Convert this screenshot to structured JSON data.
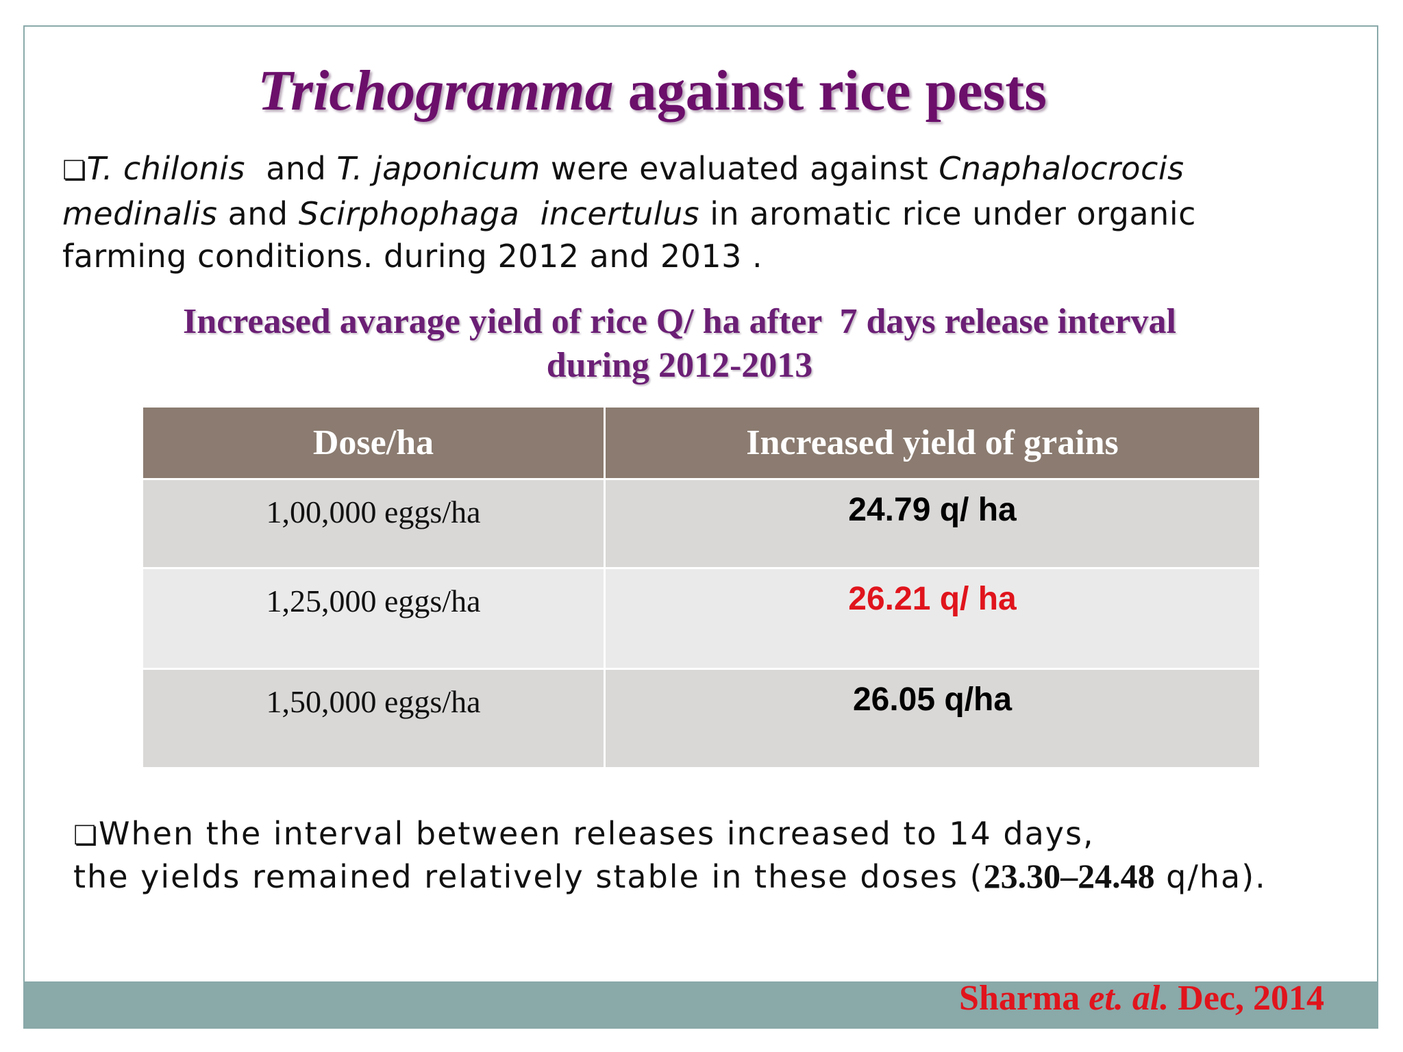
{
  "title": [
    "Trichogramma",
    " against rice pests"
  ],
  "intro": [
    "T. chilonis",
    "  and ",
    "T. japonicum",
    " were evaluated against ",
    "Cnaphalocrocis",
    "medinalis",
    " and ",
    "Scirphophaga  incertulus",
    " in aromatic rice under organic",
    "farming conditions. during 2012 and 2013 ."
  ],
  "subtitle": [
    "Increased avarage yield of rice Q/ ha after  7 days release interval",
    "during 2012-2013"
  ],
  "table": {
    "header": [
      "Dose/ha",
      "Increased yield  of  grains"
    ],
    "rows": [
      [
        "1,00,000 eggs/ha",
        "24.79 q/ ha"
      ],
      [
        "1,25,000 eggs/ha",
        "26.21 q/ ha"
      ],
      [
        "1,50,000 eggs/ha",
        "26.05 q/ha"
      ]
    ]
  },
  "note": [
    "When the interval between releases increased to 14 days,",
    "the yields remained relatively stable in these doses (",
    "23.30–24.48",
    " q/ha)."
  ],
  "citation": [
    "Sharma ",
    "et. al.",
    " Dec, 2014"
  ]
}
